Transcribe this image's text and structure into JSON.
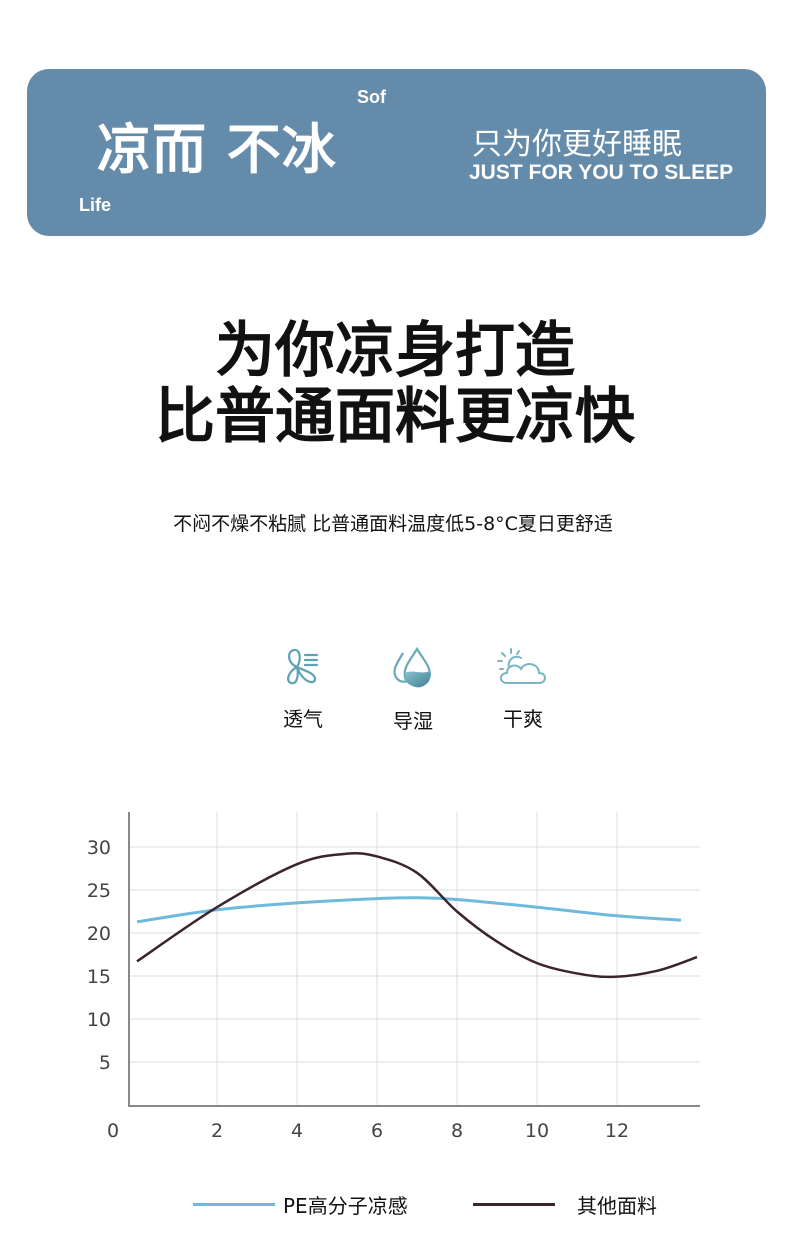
{
  "banner": {
    "title": "凉而 不冰",
    "tag_top": "Sof",
    "tag_bottom": "Life",
    "slogan_cn": "只为你更好睡眠",
    "slogan_en": "JUST FOR YOU TO SLEEP",
    "color": "#658bab"
  },
  "headline": {
    "line1": "为你凉身打造",
    "line2": "比普通面料更凉快"
  },
  "subtitle": "不闷不燥不粘腻 比普通面料温度低5-8°C夏日更舒适",
  "features": [
    {
      "icon": "fan-icon",
      "label": "透气"
    },
    {
      "icon": "water-drop-icon",
      "label": "导湿"
    },
    {
      "icon": "sun-cloud-icon",
      "label": "干爽"
    }
  ],
  "chart_data": {
    "type": "line",
    "xlim": [
      0,
      14
    ],
    "ylim": [
      0,
      32
    ],
    "x_ticks": [
      "0",
      "2",
      "4",
      "6",
      "8",
      "10",
      "12"
    ],
    "y_ticks": [
      "5",
      "10",
      "15",
      "20",
      "25",
      "30"
    ],
    "grid": true,
    "legend_position": "bottom",
    "series": [
      {
        "name": "PE高分子凉感",
        "color": "#6fb9dc",
        "points": [
          [
            0,
            21.3
          ],
          [
            2,
            22.7
          ],
          [
            4,
            23.5
          ],
          [
            6,
            24.0
          ],
          [
            7,
            24.1
          ],
          [
            8,
            23.9
          ],
          [
            10,
            23.0
          ],
          [
            12,
            22.0
          ],
          [
            13.6,
            21.5
          ]
        ]
      },
      {
        "name": "其他面料",
        "color": "#3a2430",
        "points": [
          [
            0,
            16.7
          ],
          [
            2,
            23.0
          ],
          [
            4,
            28.0
          ],
          [
            5.2,
            29.2
          ],
          [
            6,
            28.9
          ],
          [
            7,
            27.0
          ],
          [
            8,
            22.5
          ],
          [
            9,
            19.0
          ],
          [
            10,
            16.5
          ],
          [
            11,
            15.3
          ],
          [
            11.9,
            14.9
          ],
          [
            13,
            15.6
          ],
          [
            14,
            17.2
          ]
        ]
      }
    ]
  }
}
